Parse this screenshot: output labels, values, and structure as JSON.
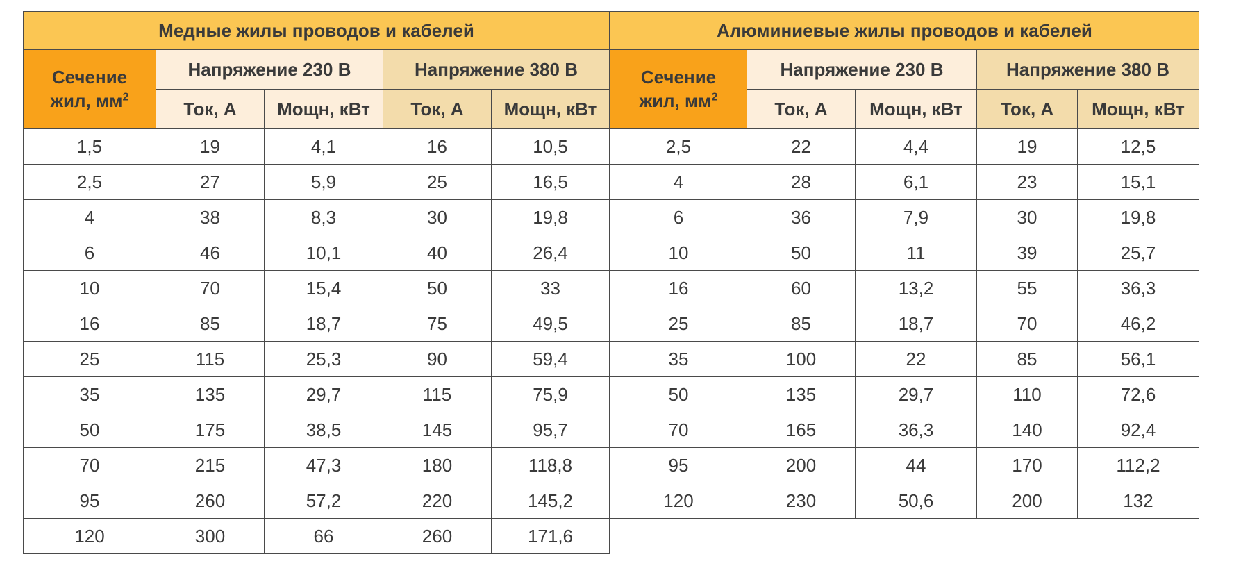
{
  "copper": {
    "title": "Медные жилы проводов и кабелей",
    "section_line1": "Сечение",
    "section_line2": "жил, мм",
    "section_sup": "2",
    "v230": "Напряжение 230 В",
    "v380": "Напряжение 380 В",
    "current": "Ток, А",
    "power": "Мощн, кВт",
    "rows": [
      [
        "1,5",
        "19",
        "4,1",
        "16",
        "10,5"
      ],
      [
        "2,5",
        "27",
        "5,9",
        "25",
        "16,5"
      ],
      [
        "4",
        "38",
        "8,3",
        "30",
        "19,8"
      ],
      [
        "6",
        "46",
        "10,1",
        "40",
        "26,4"
      ],
      [
        "10",
        "70",
        "15,4",
        "50",
        "33"
      ],
      [
        "16",
        "85",
        "18,7",
        "75",
        "49,5"
      ],
      [
        "25",
        "115",
        "25,3",
        "90",
        "59,4"
      ],
      [
        "35",
        "135",
        "29,7",
        "115",
        "75,9"
      ],
      [
        "50",
        "175",
        "38,5",
        "145",
        "95,7"
      ],
      [
        "70",
        "215",
        "47,3",
        "180",
        "118,8"
      ],
      [
        "95",
        "260",
        "57,2",
        "220",
        "145,2"
      ],
      [
        "120",
        "300",
        "66",
        "260",
        "171,6"
      ]
    ]
  },
  "aluminum": {
    "title": "Алюминиевые жилы проводов и кабелей",
    "section_line1": "Сечение",
    "section_line2": "жил, мм",
    "section_sup": "2",
    "v230": "Напряжение 230 В",
    "v380": "Напряжение 380 В",
    "current": "Ток, А",
    "power": "Мощн, кВт",
    "rows": [
      [
        "2,5",
        "22",
        "4,4",
        "19",
        "12,5"
      ],
      [
        "4",
        "28",
        "6,1",
        "23",
        "15,1"
      ],
      [
        "6",
        "36",
        "7,9",
        "30",
        "19,8"
      ],
      [
        "10",
        "50",
        "11",
        "39",
        "25,7"
      ],
      [
        "16",
        "60",
        "13,2",
        "55",
        "36,3"
      ],
      [
        "25",
        "85",
        "18,7",
        "70",
        "46,2"
      ],
      [
        "35",
        "100",
        "22",
        "85",
        "56,1"
      ],
      [
        "50",
        "135",
        "29,7",
        "110",
        "72,6"
      ],
      [
        "70",
        "165",
        "36,3",
        "140",
        "92,4"
      ],
      [
        "95",
        "200",
        "44",
        "170",
        "112,2"
      ],
      [
        "120",
        "230",
        "50,6",
        "200",
        "132"
      ]
    ]
  },
  "colors": {
    "title_bg": "#fbc653",
    "section_bg": "#f9a21a",
    "v230_bg": "#fdeedb",
    "v380_bg": "#f3dcab",
    "border": "#4a4a4a"
  }
}
